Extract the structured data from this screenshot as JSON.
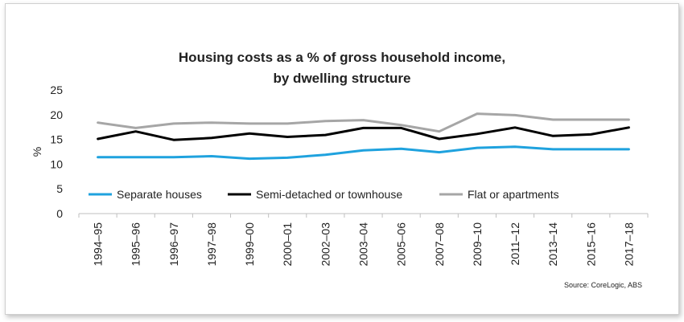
{
  "chart_data": {
    "type": "line",
    "title": "Housing costs as a % of gross household income,",
    "subtitle": "by dwelling structure",
    "xlabel": "",
    "ylabel": "%",
    "ylim": [
      0,
      25
    ],
    "yticks": [
      "0",
      "5",
      "10",
      "15",
      "20",
      "25"
    ],
    "categories": [
      "1994–95",
      "1995–96",
      "1996–97",
      "1997–98",
      "1999–00",
      "2000–01",
      "2002–03",
      "2003–04",
      "2005–06",
      "2007–08",
      "2009–10",
      "2011–12",
      "2013–14",
      "2015–16",
      "2017–18"
    ],
    "series": [
      {
        "name": "Separate houses",
        "color": "#1fa2de",
        "values": [
          11.4,
          11.4,
          11.4,
          11.6,
          11.1,
          11.3,
          11.9,
          12.8,
          13.1,
          12.4,
          13.3,
          13.5,
          13.0,
          13.0,
          13.0
        ]
      },
      {
        "name": "Semi-detached or townhouse",
        "color": "#000000",
        "values": [
          15.1,
          16.6,
          14.9,
          15.3,
          16.2,
          15.5,
          15.9,
          17.3,
          17.3,
          15.1,
          16.1,
          17.4,
          15.7,
          16.0,
          17.4
        ]
      },
      {
        "name": "Flat or apartments",
        "color": "#a6a6a6",
        "values": [
          18.4,
          17.3,
          18.2,
          18.4,
          18.2,
          18.2,
          18.7,
          18.9,
          17.9,
          16.6,
          20.2,
          19.9,
          19.0,
          19.0,
          19.0
        ]
      }
    ],
    "grid": false,
    "legend_position": "inside-bottom",
    "source": "Source: CoreLogic, ABS"
  }
}
